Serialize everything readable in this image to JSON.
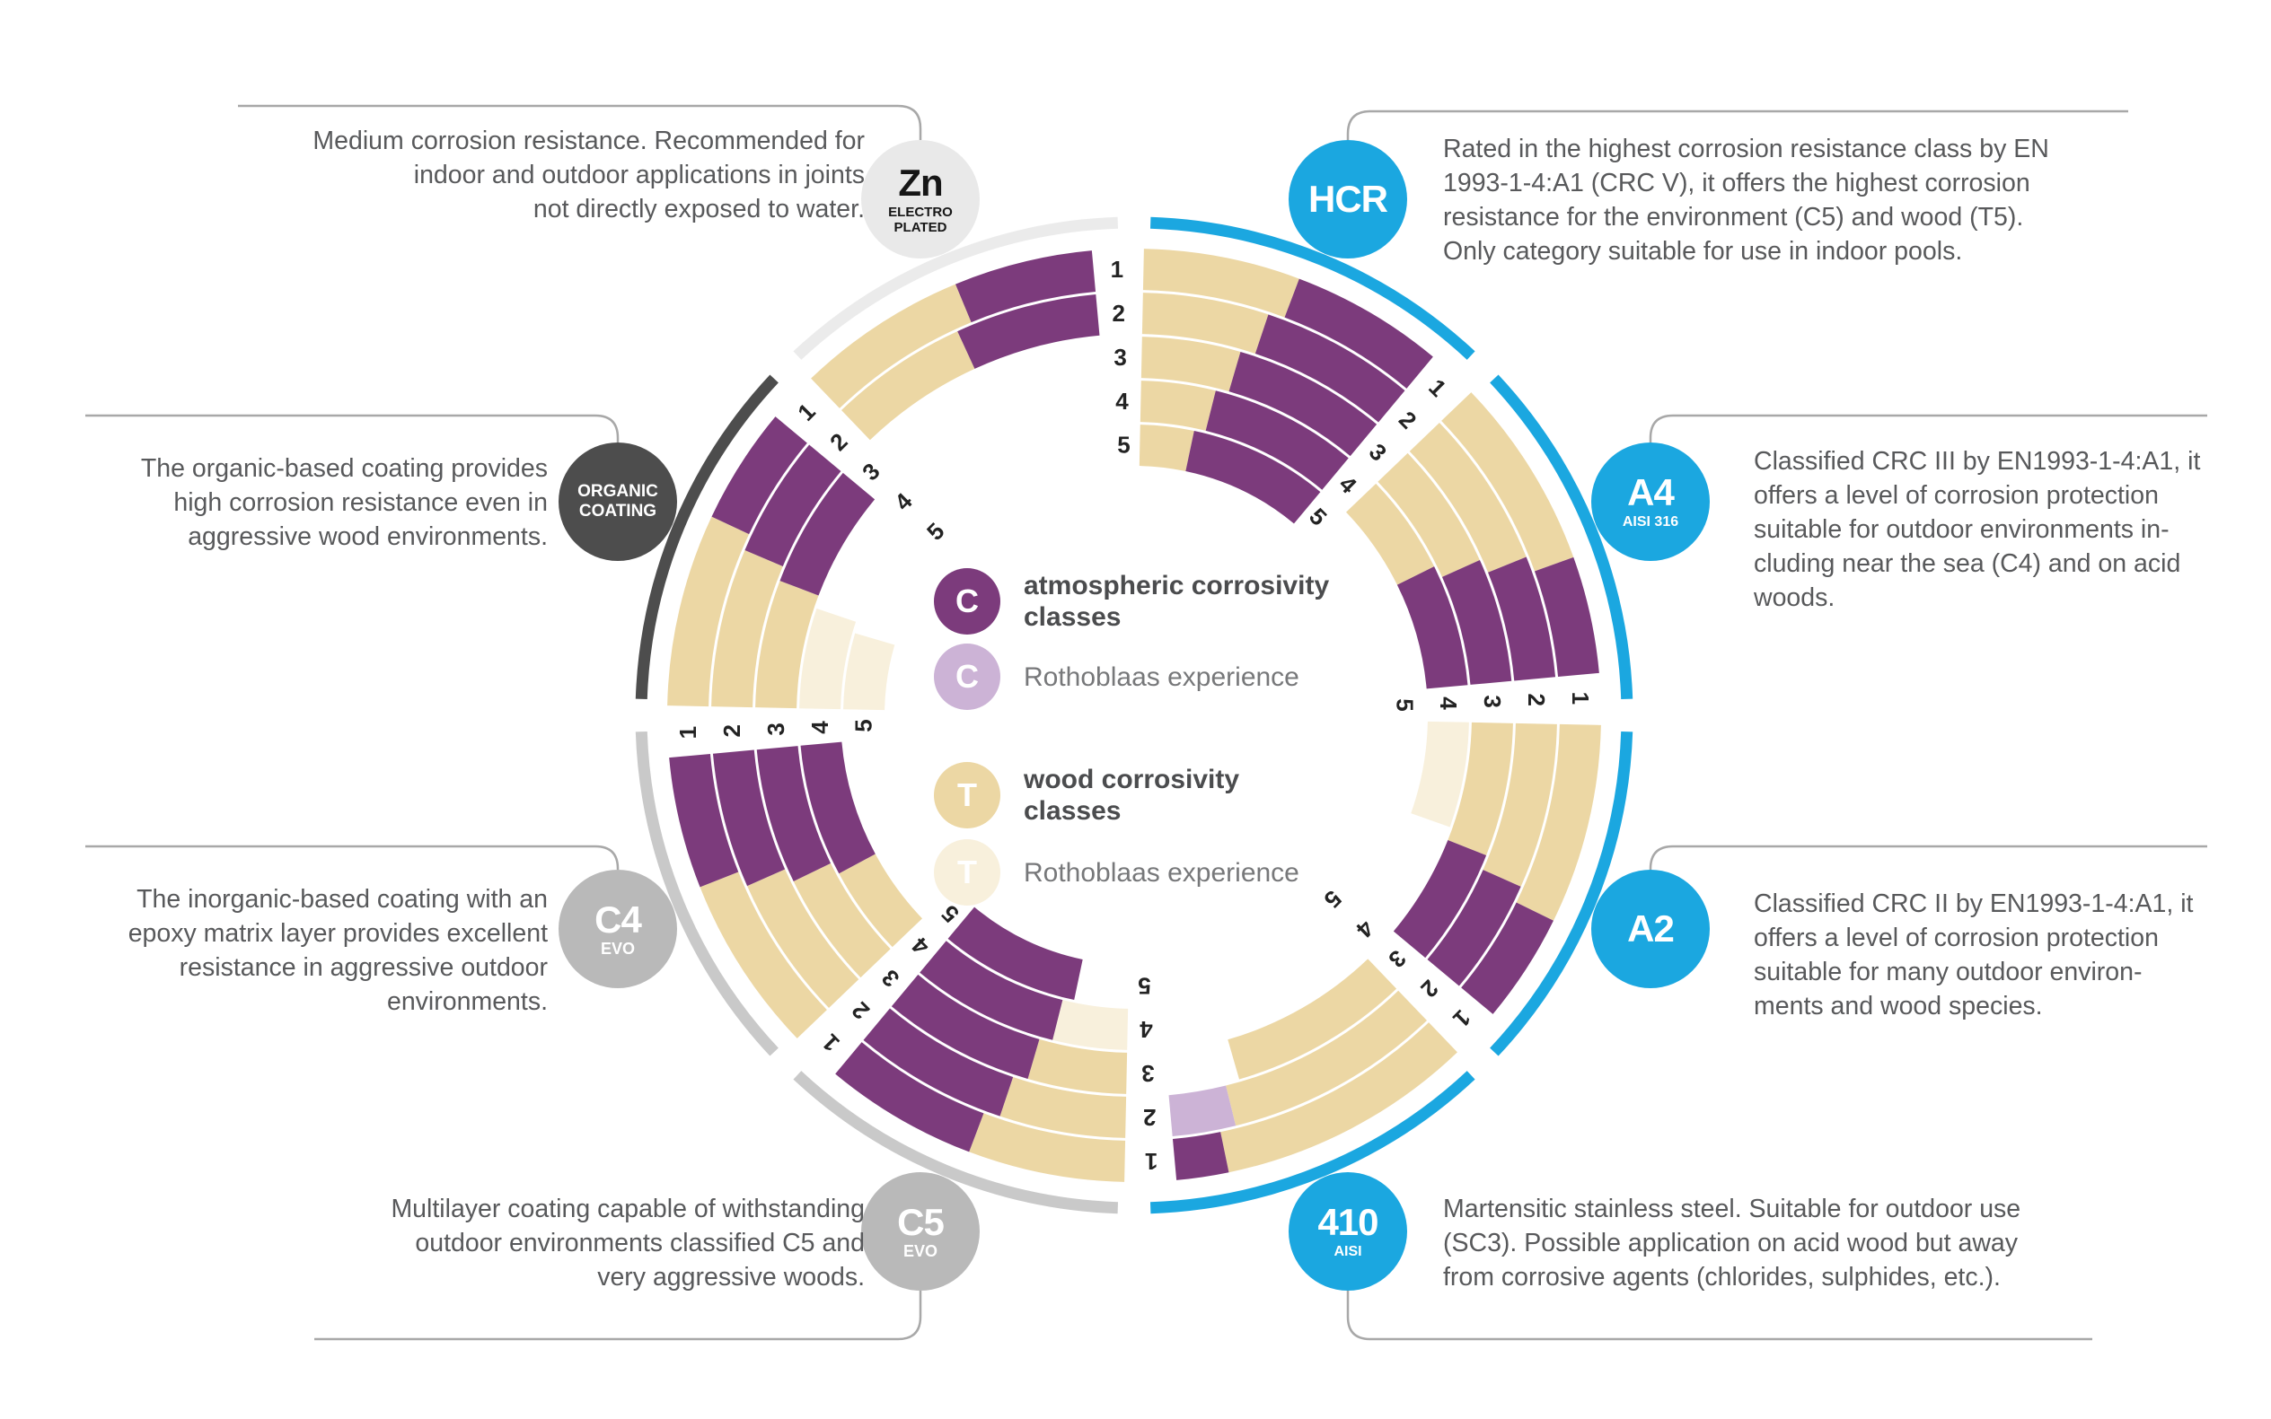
{
  "legend": {
    "items": [
      {
        "symbol": "C",
        "label": "atmospheric corrosivity\nclasses",
        "color": "#7c3b7c",
        "emphasis": true
      },
      {
        "symbol": "C",
        "label": "Rothoblaas experience",
        "color": "#ccb3d6",
        "emphasis": false
      },
      {
        "symbol": "T",
        "label": "wood corrosivity\nclasses",
        "color": "#ecd7a4",
        "emphasis": true
      },
      {
        "symbol": "T",
        "label": "Rothoblaas experience",
        "color": "#f8f0dc",
        "emphasis": false
      }
    ]
  },
  "badges": {
    "zn": {
      "main": "Zn",
      "sub": "ELECTRO\nPLATED",
      "bg": "#e9e9e9",
      "fg": "#161616"
    },
    "hcr": {
      "main": "HCR",
      "sub": "",
      "bg": "#1ba7e0",
      "fg": "#ffffff"
    },
    "a4": {
      "main": "A4",
      "sub": "AISI 316",
      "bg": "#1ba7e0",
      "fg": "#ffffff"
    },
    "a2": {
      "main": "A2",
      "sub": "",
      "bg": "#1ba7e0",
      "fg": "#ffffff"
    },
    "b410": {
      "main": "410",
      "sub": "AISI",
      "bg": "#1ba7e0",
      "fg": "#ffffff"
    },
    "c5": {
      "main": "C5",
      "sub": "EVO",
      "bg": "#b9b9b9",
      "fg": "#ffffff"
    },
    "c4": {
      "main": "C4",
      "sub": "EVO",
      "bg": "#b9b9b9",
      "fg": "#ffffff"
    },
    "organic": {
      "main": "ORGANIC\nCOATING",
      "sub": "",
      "bg": "#4d4d4d",
      "fg": "#ffffff"
    }
  },
  "callouts": {
    "zn": {
      "lines": [
        "Medium corrosion resistance. Recommended for",
        "indoor and outdoor applications in joints",
        "not directly exposed to water."
      ]
    },
    "hcr": {
      "lines": [
        "Rated in the highest corrosion resistance class by EN",
        "1993-1-4:A1 (CRC V), it offers the highest corrosion",
        "resistance for the environment (C5) and wood (T5).",
        "Only category suitable for use in indoor pools."
      ]
    },
    "organic": {
      "lines": [
        "The organic-based coating provides",
        "high corrosion resistance even in",
        "aggressive wood environments."
      ]
    },
    "a4": {
      "lines": [
        "Classified CRC III by EN1993-1-4:A1, it",
        "offers a level of corrosion protection",
        "suitable for outdoor environments in-",
        "cluding near the sea (C4) and on acid",
        "woods."
      ]
    },
    "c4": {
      "lines": [
        "The inorganic-based coating with an",
        "epoxy matrix layer provides excellent",
        "resistance in aggressive outdoor",
        "environments."
      ]
    },
    "a2": {
      "lines": [
        "Classified CRC II by EN1993-1-4:A1, it",
        "offers a level of corrosion protection",
        "suitable for many outdoor environ-",
        "ments and wood species."
      ]
    },
    "c5": {
      "lines": [
        "Multilayer coating capable of withstanding",
        "outdoor environments classified C5 and",
        "very aggressive woods."
      ]
    },
    "b410": {
      "lines": [
        "Martensitic stainless steel. Suitable for outdoor use",
        "(SC3). Possible application on acid wood but away",
        "from corrosive agents (chlorides, sulphides, etc.)."
      ]
    }
  },
  "chart_data": {
    "type": "radial-ring",
    "description": "Corrosion resistance ratings per fastener coating/material. Rings numbered 1 (outer) to 5 (inner). Purple wedge = atmospheric corrosivity class (C); tan wedge = wood corrosivity class (T); pale variants = Rothoblaas experience extension.",
    "scale_labels": [
      "1",
      "2",
      "3",
      "4",
      "5"
    ],
    "colors": {
      "atmospheric": "#7c3b7c",
      "atmospheric_experience": "#ccb3d6",
      "wood": "#ecd7a4",
      "wood_experience": "#f8f0dc"
    },
    "sectors": [
      {
        "id": "hcr",
        "name": "HCR",
        "start_deg": 0,
        "end_deg": 45,
        "accent_color": "#1ba7e0",
        "wood_class": 5,
        "wood_experience": 0,
        "atmospheric_class": 5,
        "atmospheric_experience": 0,
        "split_frac": 0.46
      },
      {
        "id": "a4",
        "name": "A4 AISI 316",
        "start_deg": 45,
        "end_deg": 90,
        "accent_color": "#1ba7e0",
        "wood_class": 4,
        "wood_experience": 0,
        "atmospheric_class": 4,
        "atmospheric_experience": 0,
        "split_frac": 0.56
      },
      {
        "id": "a2",
        "name": "A2",
        "start_deg": 90,
        "end_deg": 135,
        "accent_color": "#1ba7e0",
        "wood_class": 3,
        "wood_experience": 1,
        "atmospheric_class": 3,
        "atmospheric_experience": 0,
        "split_frac": 0.58
      },
      {
        "id": "410",
        "name": "410 AISI",
        "start_deg": 135,
        "end_deg": 180,
        "accent_color": "#1ba7e0",
        "wood_class": 3,
        "wood_experience": 0,
        "atmospheric_class": 1,
        "atmospheric_experience": 1,
        "split_frac": 0.74
      },
      {
        "id": "c5",
        "name": "C5 EVO",
        "start_deg": 180,
        "end_deg": 225,
        "accent_color": "#c9c9c9",
        "wood_class": 3,
        "wood_experience": 1,
        "atmospheric_class": 5,
        "atmospheric_experience": 0,
        "split_frac": 0.46
      },
      {
        "id": "c4",
        "name": "C4 EVO",
        "start_deg": 225,
        "end_deg": 270,
        "accent_color": "#c9c9c9",
        "wood_class": 4,
        "wood_experience": 0,
        "atmospheric_class": 4,
        "atmospheric_experience": 0,
        "split_frac": 0.52
      },
      {
        "id": "organic",
        "name": "ORGANIC COATING",
        "start_deg": 270,
        "end_deg": 315,
        "accent_color": "#4d4d4d",
        "wood_class": 3,
        "wood_experience": 2,
        "atmospheric_class": 3,
        "atmospheric_experience": 0,
        "split_frac": 0.56
      },
      {
        "id": "zn",
        "name": "Zn ELECTROPLATED",
        "start_deg": 315,
        "end_deg": 360,
        "accent_color": "#ebebeb",
        "wood_class": 2,
        "wood_experience": 0,
        "atmospheric_class": 2,
        "atmospheric_experience": 0,
        "split_frac": 0.5
      }
    ]
  }
}
